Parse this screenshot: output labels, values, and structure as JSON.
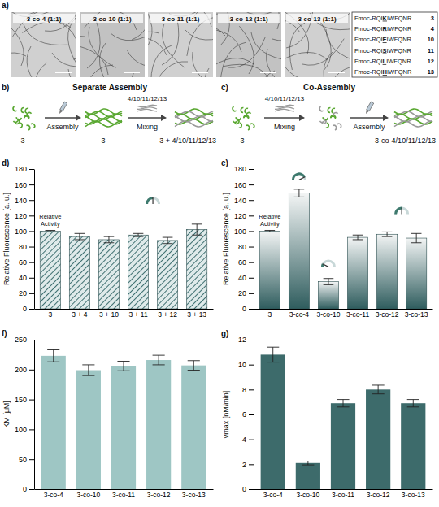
{
  "panel_a": {
    "panel": "a)",
    "images": [
      "3-co-4 (1:1)",
      "3-co-10 (1:1)",
      "3-co-11 (1:1)",
      "3-co-12 (1:1)",
      "3-co-13 (1:1)"
    ],
    "sequences": [
      [
        "Fmoc-RQIKIWFQNR",
        "3"
      ],
      [
        "Fmoc-RQIRIWFQNR",
        "4"
      ],
      [
        "Fmoc-RQIEIWFQNR",
        "10"
      ],
      [
        "Fmoc-RQISIWFQNR",
        "11"
      ],
      [
        "Fmoc-RQILIWFQNR",
        "12"
      ],
      [
        "Fmoc-RQIHIWFQNR",
        "13"
      ]
    ]
  },
  "panel_b": {
    "panel": "b)",
    "title": "Separate Assembly",
    "start": "3",
    "step_1": "Assembly",
    "middle": "3",
    "added": "4/10/11/12/13",
    "step_2": "Mixing",
    "end": "3 + 4/10/11/12/13"
  },
  "panel_c": {
    "panel": "c)",
    "title": "Co-Assembly",
    "start": "3",
    "added": "4/10/11/12/13",
    "step_1": "Mixing",
    "step_2": "Assembly",
    "end": "3-co-4/10/11/12/13"
  },
  "chart_data": [
    {
      "type": "bar",
      "panel": "d)",
      "y_label": "Relative Fluorescence [a. u.]",
      "annotation": "Relative Activity",
      "categories": [
        "3",
        "3 + 4",
        "3 + 10",
        "3 + 11",
        "3 + 12",
        "3 + 13"
      ],
      "values": [
        100,
        93,
        89,
        95,
        88,
        102
      ],
      "errors": [
        1,
        4,
        4,
        2,
        4,
        7
      ],
      "color": "#3e6f70",
      "ylim": [
        0,
        180
      ],
      "yticks": [
        0,
        20,
        40,
        60,
        80,
        100,
        120,
        140,
        160,
        180
      ]
    },
    {
      "type": "bar",
      "panel": "e)",
      "y_label": "Relative Fluorescence [a. u.]",
      "annotation": "Relative Activity",
      "categories": [
        "3",
        "3-co-4",
        "3-co-10",
        "3-co-11",
        "3-co-12",
        "3-co-13"
      ],
      "values": [
        100,
        149,
        35,
        92,
        96,
        91
      ],
      "errors": [
        1,
        5,
        4,
        3,
        3,
        6
      ],
      "color": "#2f5d5e",
      "ylim": [
        0,
        180
      ],
      "yticks": [
        0,
        20,
        40,
        60,
        80,
        100,
        120,
        140,
        160,
        180
      ]
    },
    {
      "type": "bar",
      "panel": "f)",
      "y_label": "KM [µM]",
      "categories": [
        "3-co-4",
        "3-co-10",
        "3-co-11",
        "3-co-12",
        "3-co-13"
      ],
      "values": [
        223,
        199,
        206,
        216,
        207
      ],
      "errors": [
        10,
        9,
        8,
        8,
        8
      ],
      "color": "#9ec6c4",
      "ylim": [
        0,
        250
      ],
      "yticks": [
        0,
        50,
        100,
        150,
        200,
        250
      ]
    },
    {
      "type": "bar",
      "panel": "g)",
      "y_label": "vmax [nM/min]",
      "categories": [
        "3-co-4",
        "3-co-10",
        "3-co-11",
        "3-co-12",
        "3-co-13"
      ],
      "values": [
        10.8,
        2.1,
        6.9,
        8,
        6.9
      ],
      "errors": [
        0.6,
        0.15,
        0.3,
        0.35,
        0.3
      ],
      "color": "#3d6b6b",
      "ylim": [
        0,
        12
      ],
      "yticks": [
        0,
        2,
        4,
        6,
        8,
        10,
        12
      ]
    }
  ]
}
